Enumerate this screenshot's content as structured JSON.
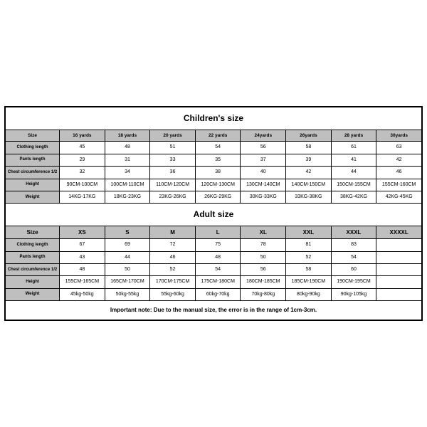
{
  "colors": {
    "border": "#000000",
    "header_bg": "#bfbfbf",
    "cell_bg": "#ffffff",
    "text": "#000000"
  },
  "children": {
    "title": "Children's size",
    "columns": [
      "Size",
      "16 yards",
      "18 yards",
      "20 yards",
      "22 yards",
      "24yards",
      "26yards",
      "28 yards",
      "30yards"
    ],
    "rows": [
      {
        "label": "Clothing length",
        "cells": [
          "45",
          "48",
          "51",
          "54",
          "56",
          "58",
          "61",
          "63"
        ]
      },
      {
        "label": "Pants length",
        "cells": [
          "29",
          "31",
          "33",
          "35",
          "37",
          "39",
          "41",
          "42"
        ]
      },
      {
        "label": "Chest circumference 1/2",
        "cells": [
          "32",
          "34",
          "36",
          "38",
          "40",
          "42",
          "44",
          "46"
        ]
      },
      {
        "label": "Height",
        "cells": [
          "90CM-100CM",
          "100CM-110CM",
          "110CM-120CM",
          "120CM-130CM",
          "130CM-140CM",
          "140CM-150CM",
          "150CM-155CM",
          "155CM-160CM"
        ]
      },
      {
        "label": "Weight",
        "cells": [
          "14KG-17KG",
          "18KG-23KG",
          "23KG-26KG",
          "26KG-29KG",
          "30KG-33KG",
          "33KG-38KG",
          "38KG-42KG",
          "42KG-45KG"
        ]
      }
    ]
  },
  "adult": {
    "title": "Adult size",
    "columns": [
      "Size",
      "XS",
      "S",
      "M",
      "L",
      "XL",
      "XXL",
      "XXXL",
      "XXXXL"
    ],
    "rows": [
      {
        "label": "Clothing length",
        "cells": [
          "67",
          "69",
          "72",
          "75",
          "78",
          "81",
          "83",
          ""
        ]
      },
      {
        "label": "Pants length",
        "cells": [
          "43",
          "44",
          "46",
          "48",
          "50",
          "52",
          "54",
          ""
        ]
      },
      {
        "label": "Chest circumference 1/2",
        "cells": [
          "48",
          "50",
          "52",
          "54",
          "56",
          "58",
          "60",
          ""
        ]
      },
      {
        "label": "Height",
        "cells": [
          "155CM-165CM",
          "165CM-170CM",
          "170CM-175CM",
          "175CM-180CM",
          "180CM-185CM",
          "185CM-190CM",
          "190CM-195CM",
          ""
        ]
      },
      {
        "label": "Weight",
        "cells": [
          "45kg-50kg",
          "50kg-55kg",
          "55kg-60kg",
          "60kg-70kg",
          "70kg-80kg",
          "80kg-90kg",
          "90kg-105kg",
          ""
        ]
      }
    ]
  },
  "note": "Important note: Due to the manual size, the error is in the range of 1cm-3cm."
}
